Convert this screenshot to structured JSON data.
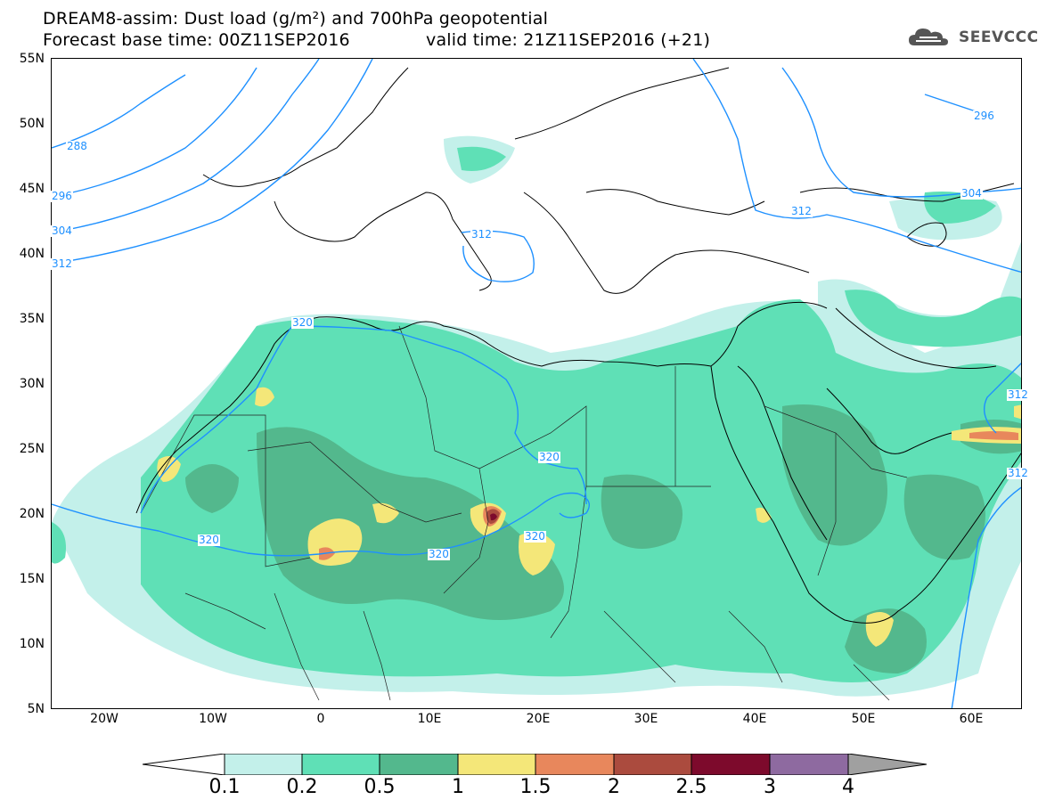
{
  "header": {
    "title_line1": "DREAM8-assim: Dust load (g/m²) and 700hPa geopotential",
    "title_line2_left": "Forecast base time: 00Z11SEP2016",
    "title_line2_right": "valid time: 21Z11SEP2016 (+21)",
    "logo_text": "SEEVCCC"
  },
  "map": {
    "lat_labels": [
      "55N",
      "50N",
      "45N",
      "40N",
      "35N",
      "30N",
      "25N",
      "20N",
      "15N",
      "10N",
      "5N"
    ],
    "lon_labels": [
      "20W",
      "10W",
      "0",
      "10E",
      "20E",
      "30E",
      "40E",
      "50E",
      "60E"
    ],
    "contour_labels": [
      "288",
      "296",
      "304",
      "312",
      "312",
      "312",
      "320",
      "320",
      "320",
      "320",
      "320",
      "296",
      "304",
      "312",
      "312"
    ],
    "contour_color": "#1e90ff"
  },
  "colorbar": {
    "labels": [
      "0.1",
      "0.2",
      "0.5",
      "1",
      "1.5",
      "2",
      "2.5",
      "3",
      "4"
    ],
    "colors": [
      "#c3f0ea",
      "#5fe0b6",
      "#53b88d",
      "#f4e779",
      "#e8875c",
      "#ab4b3e",
      "#7d0a2c",
      "#8e6aa0",
      "#a0a0a0"
    ]
  }
}
